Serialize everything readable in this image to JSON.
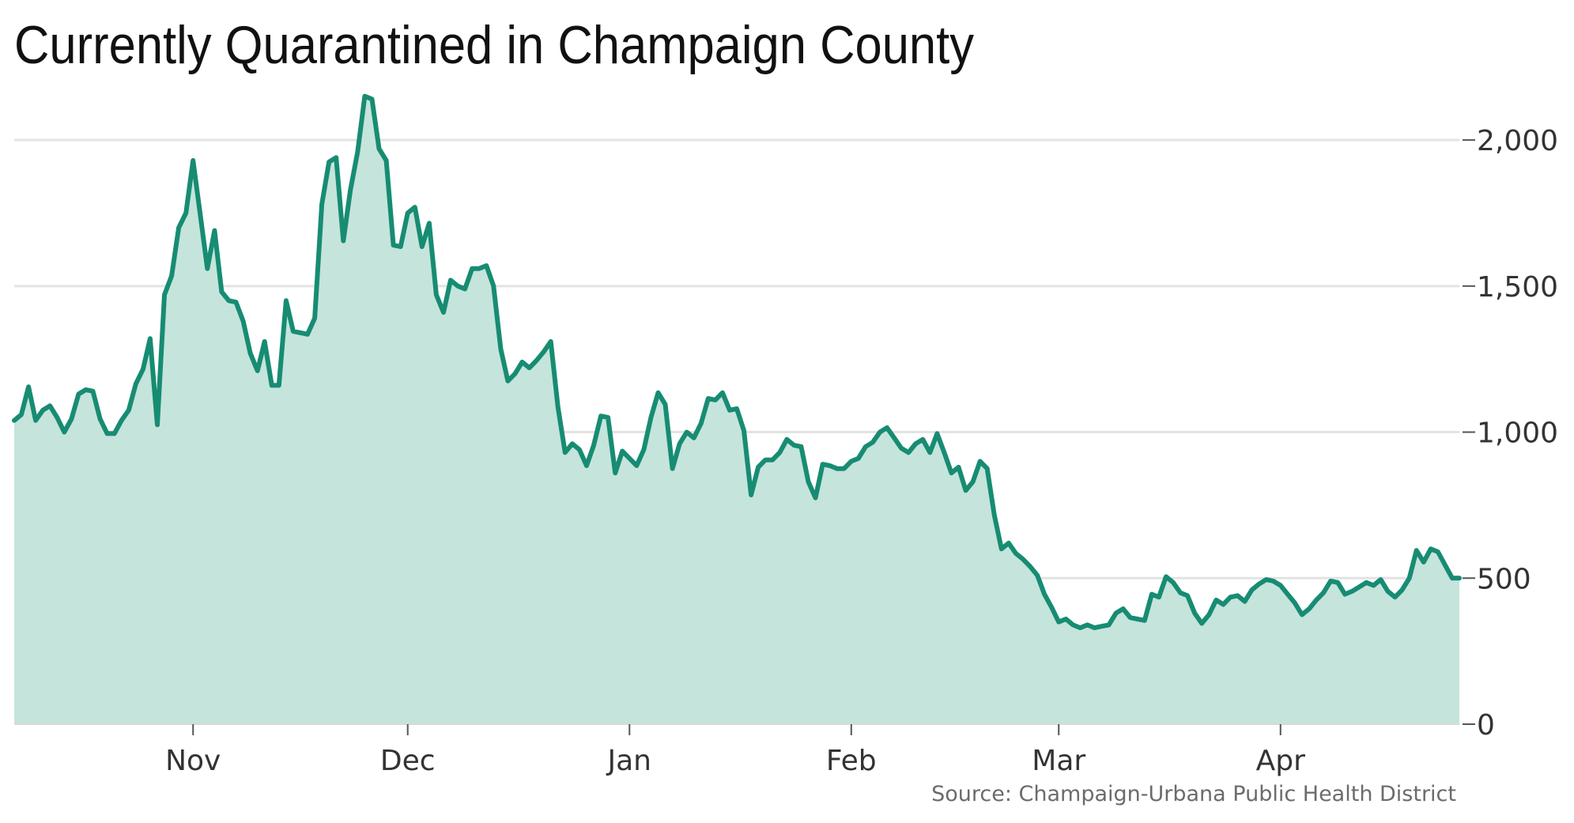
{
  "colors": {
    "line": "#178c73",
    "area": "#c5e4dc",
    "grid": "#e3e3e3",
    "baseline": "#d9d9d9",
    "tick_mark": "#555555"
  },
  "chart_data": {
    "type": "area",
    "title": "Currently Quarantined in Champaign County",
    "source": "Source: Champaign-Urbana Public Health District",
    "xlabel": "",
    "ylabel": "",
    "x_tick_labels": [
      "Nov",
      "Dec",
      "Jan",
      "Feb",
      "Mar",
      "Apr"
    ],
    "x_tick_dates": [
      "Nov 1",
      "Dec 1",
      "Jan 1",
      "Feb 1",
      "Mar 1",
      "Apr 1"
    ],
    "x_range": [
      "Oct 7",
      "Apr 26"
    ],
    "y_ticks": [
      0,
      500,
      1000,
      1500,
      2000
    ],
    "y_tick_labels": [
      "0",
      "500",
      "1,000",
      "1,500",
      "2,000"
    ],
    "ylim": [
      0,
      2160
    ],
    "grid": true,
    "y_axis_position": "right",
    "series": [
      {
        "values": [
          1040,
          1060,
          1155,
          1040,
          1075,
          1090,
          1050,
          1000,
          1045,
          1130,
          1145,
          1140,
          1045,
          995,
          995,
          1040,
          1075,
          1165,
          1215,
          1320,
          1025,
          1470,
          1535,
          1700,
          1750,
          1930,
          1745,
          1560,
          1690,
          1480,
          1450,
          1445,
          1380,
          1270,
          1210,
          1310,
          1160,
          1160,
          1450,
          1345,
          1340,
          1335,
          1390,
          1780,
          1925,
          1940,
          1655,
          1830,
          1960,
          2150,
          2140,
          1970,
          1930,
          1640,
          1635,
          1750,
          1770,
          1635,
          1715,
          1470,
          1410,
          1520,
          1500,
          1490,
          1560,
          1560,
          1570,
          1500,
          1285,
          1175,
          1200,
          1240,
          1220,
          1245,
          1275,
          1310,
          1085,
          930,
          960,
          940,
          885,
          955,
          1055,
          1050,
          860,
          935,
          910,
          885,
          940,
          1050,
          1135,
          1095,
          875,
          960,
          1000,
          980,
          1030,
          1115,
          1110,
          1135,
          1075,
          1080,
          1005,
          785,
          880,
          905,
          905,
          930,
          975,
          955,
          950,
          830,
          775,
          890,
          885,
          875,
          875,
          900,
          910,
          950,
          965,
          1000,
          1015,
          980,
          945,
          930,
          960,
          975,
          930,
          995,
          930,
          860,
          880,
          800,
          830,
          900,
          875,
          715,
          600,
          620,
          585,
          565,
          540,
          510,
          445,
          400,
          350,
          360,
          340,
          330,
          340,
          330,
          335,
          340,
          380,
          395,
          365,
          360,
          355,
          445,
          435,
          505,
          485,
          450,
          440,
          380,
          345,
          375,
          425,
          410,
          435,
          440,
          420,
          460,
          480,
          495,
          490,
          475,
          445,
          415,
          375,
          395,
          425,
          450,
          490,
          485,
          445,
          455,
          470,
          485,
          475,
          495,
          455,
          435,
          460,
          500,
          595,
          555,
          600,
          590,
          545,
          500,
          500
        ]
      }
    ]
  }
}
